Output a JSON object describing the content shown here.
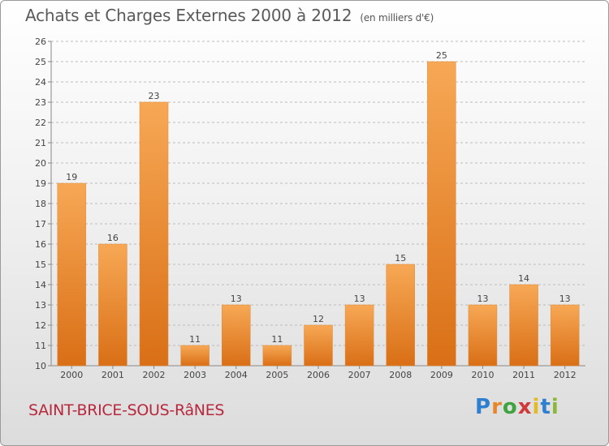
{
  "header": {
    "title": "Achats et Charges Externes 2000 à 2012",
    "subtitle": "(en milliers d'€)"
  },
  "footer": {
    "commune": "SAINT-BRICE-SOUS-RâNES",
    "logo": "Proxiti"
  },
  "colors": {
    "bar_light": "#f7a855",
    "bar_dark": "#d96f16",
    "title": "#5a5a5a",
    "commune": "#b8283c"
  },
  "chart_data": {
    "type": "bar",
    "title": "Achats et Charges Externes 2000 à 2012",
    "subtitle": "(en milliers d'€)",
    "categories": [
      "2000",
      "2001",
      "2002",
      "2003",
      "2004",
      "2005",
      "2006",
      "2007",
      "2008",
      "2009",
      "2010",
      "2011",
      "2012"
    ],
    "values": [
      19,
      16,
      23,
      11,
      13,
      11,
      12,
      13,
      15,
      25,
      13,
      14,
      13
    ],
    "ylim": [
      10,
      26
    ],
    "yticks": [
      10,
      11,
      12,
      13,
      14,
      15,
      16,
      17,
      18,
      19,
      20,
      21,
      22,
      23,
      24,
      25,
      26
    ],
    "grid": true,
    "xlabel": "",
    "ylabel": ""
  }
}
